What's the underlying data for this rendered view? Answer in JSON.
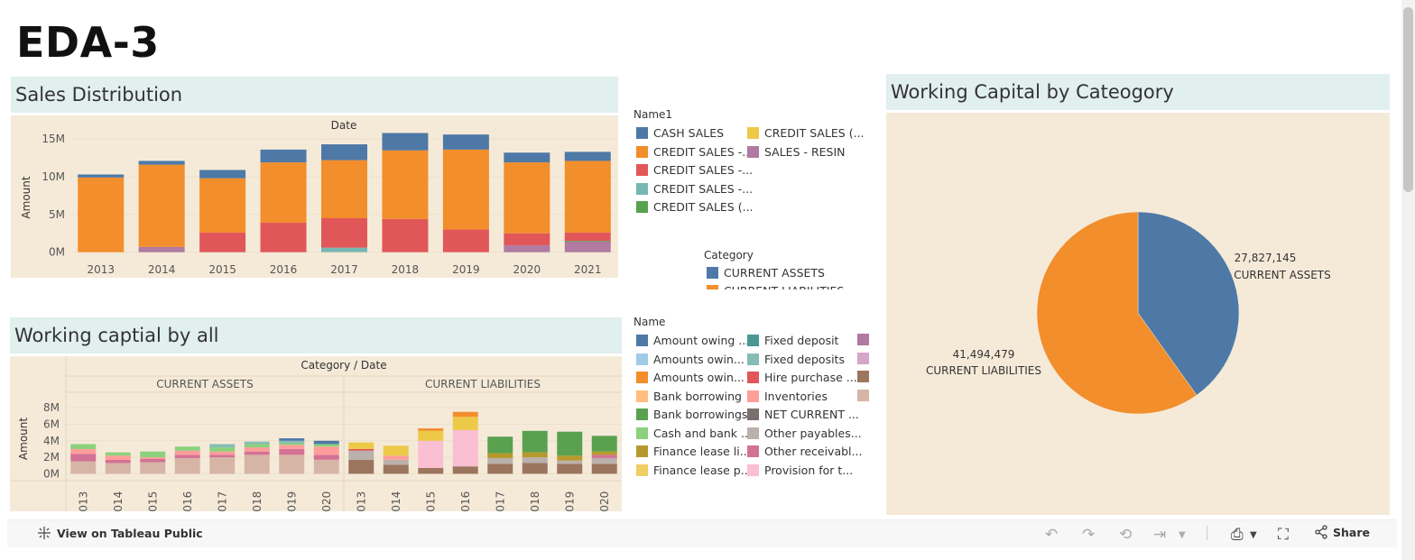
{
  "page": {
    "title": "EDA-3"
  },
  "sales": {
    "header": "Sales Distribution",
    "chart_data": {
      "type": "bar",
      "stacked": true,
      "title": "Date",
      "ylabel": "Amount",
      "ylim": [
        -1000000,
        15500000
      ],
      "yticks": [
        "15M",
        "10M",
        "5M",
        "0M"
      ],
      "ytick_values": [
        15000000,
        10000000,
        5000000,
        0
      ],
      "categories": [
        "2013",
        "2014",
        "2015",
        "2016",
        "2017",
        "2018",
        "2019",
        "2020",
        "2021"
      ],
      "series": [
        {
          "name": "SALES - RESIN",
          "color": "#b07aa1",
          "values": [
            0,
            700000,
            0,
            0,
            0,
            0,
            0,
            900000,
            1400000
          ]
        },
        {
          "name": "CREDIT SALES -...",
          "color": "#76b7b2",
          "values": [
            0,
            0,
            0,
            0,
            600000,
            0,
            0,
            0,
            0
          ]
        },
        {
          "name": "CREDIT SALES (...",
          "color": "#59a14f",
          "values": [
            0,
            0,
            0,
            0,
            0,
            0,
            0,
            0,
            100000
          ]
        },
        {
          "name": "CREDIT SALES -...",
          "color": "#e15759",
          "values": [
            0,
            0,
            2600000,
            3900000,
            3900000,
            4400000,
            3000000,
            1600000,
            1100000
          ]
        },
        {
          "name": "CREDIT SALES -...",
          "color": "#f28e2b",
          "values": [
            9900000,
            10900000,
            7200000,
            8000000,
            7700000,
            9100000,
            10600000,
            9400000,
            9500000
          ]
        },
        {
          "name": "CREDIT SALES (...",
          "color": "#edc948",
          "values": [
            0,
            0,
            0,
            0,
            0,
            0,
            0,
            0,
            0
          ]
        },
        {
          "name": "CASH SALES",
          "color": "#4e79a7",
          "values": [
            400000,
            500000,
            1100000,
            1700000,
            2100000,
            2300000,
            2000000,
            1300000,
            1200000
          ]
        }
      ]
    }
  },
  "legend_name1": {
    "title": "Name1",
    "col1": [
      {
        "label": "CASH SALES",
        "color": "#4e79a7"
      },
      {
        "label": "CREDIT SALES -...",
        "color": "#f28e2b"
      },
      {
        "label": "CREDIT SALES -...",
        "color": "#e15759"
      },
      {
        "label": "CREDIT SALES -...",
        "color": "#76b7b2"
      },
      {
        "label": "CREDIT SALES (...",
        "color": "#59a14f"
      }
    ],
    "col2": [
      {
        "label": "CREDIT SALES (...",
        "color": "#edc948"
      },
      {
        "label": "SALES - RESIN",
        "color": "#b07aa1"
      }
    ]
  },
  "legend_category": {
    "title": "Category",
    "items": [
      {
        "label": "CURRENT ASSETS",
        "color": "#4e79a7"
      },
      {
        "label": "CURRENT LIABILITIES",
        "color": "#f28e2b"
      }
    ]
  },
  "working_all": {
    "header": "Working captial by all",
    "chart_data": {
      "type": "bar",
      "stacked": true,
      "title": "Category / Date",
      "ylabel": "Amount",
      "ylim": [
        -500000,
        9000000
      ],
      "yticks": [
        "8M",
        "6M",
        "4M",
        "2M",
        "0M"
      ],
      "ytick_values": [
        8000000,
        6000000,
        4000000,
        2000000,
        0
      ],
      "panels": [
        {
          "name": "CURRENT ASSETS",
          "categories": [
            "2013",
            "2014",
            "2015",
            "2016",
            "2017",
            "2018",
            "2019",
            "2020"
          ],
          "series": [
            {
              "color": "#d7b5a6",
              "values": [
                1500000,
                1300000,
                1400000,
                1900000,
                2000000,
                2300000,
                2300000,
                1700000
              ]
            },
            {
              "color": "#d37295",
              "values": [
                900000,
                400000,
                400000,
                400000,
                300000,
                400000,
                700000,
                600000
              ]
            },
            {
              "color": "#ff9d9a",
              "values": [
                600000,
                500000,
                200000,
                500000,
                400000,
                500000,
                500000,
                1000000
              ]
            },
            {
              "color": "#8cd17d",
              "values": [
                600000,
                400000,
                700000,
                500000,
                500000,
                400000,
                200000,
                300000
              ]
            },
            {
              "color": "#86bcb6",
              "values": [
                0,
                0,
                0,
                0,
                400000,
                300000,
                300000,
                0
              ]
            },
            {
              "color": "#4e79a7",
              "values": [
                0,
                0,
                0,
                0,
                0,
                0,
                300000,
                400000
              ]
            }
          ]
        },
        {
          "name": "CURRENT LIABILITIES",
          "categories": [
            "2013",
            "2014",
            "2015",
            "2016",
            "2017",
            "2018",
            "2019",
            "2020"
          ],
          "series": [
            {
              "color": "#9c755f",
              "values": [
                1700000,
                1100000,
                700000,
                900000,
                1200000,
                1300000,
                1200000,
                1200000
              ]
            },
            {
              "color": "#bab0ac",
              "values": [
                1100000,
                600000,
                0,
                0,
                700000,
                700000,
                400000,
                700000
              ]
            },
            {
              "color": "#e15759",
              "values": [
                200000,
                0,
                0,
                0,
                0,
                0,
                0,
                0
              ]
            },
            {
              "color": "#fabfd2",
              "values": [
                0,
                0,
                3300000,
                4400000,
                0,
                0,
                0,
                0
              ]
            },
            {
              "color": "#ff9d9a",
              "values": [
                0,
                500000,
                0,
                0,
                0,
                0,
                0,
                0
              ]
            },
            {
              "color": "#d37295",
              "values": [
                0,
                0,
                0,
                0,
                0,
                0,
                0,
                400000
              ]
            },
            {
              "color": "#b6992d",
              "values": [
                0,
                0,
                0,
                0,
                600000,
                600000,
                600000,
                400000
              ]
            },
            {
              "color": "#edc948",
              "values": [
                800000,
                1200000,
                1200000,
                1600000,
                0,
                0,
                0,
                0
              ]
            },
            {
              "color": "#f28e2b",
              "values": [
                0,
                0,
                300000,
                600000,
                0,
                0,
                0,
                0
              ]
            },
            {
              "color": "#59a14f",
              "values": [
                0,
                0,
                0,
                0,
                2000000,
                2600000,
                2900000,
                1900000
              ]
            }
          ]
        }
      ]
    }
  },
  "legend_name": {
    "title": "Name",
    "col1": [
      {
        "label": "Amount owing ...",
        "color": "#4e79a7"
      },
      {
        "label": "Amounts owin...",
        "color": "#a0cbe8"
      },
      {
        "label": "Amounts owin...",
        "color": "#f28e2b"
      },
      {
        "label": "Bank borrowing",
        "color": "#ffbe7d"
      },
      {
        "label": "Bank borrowings",
        "color": "#59a14f"
      },
      {
        "label": "Cash and bank ...",
        "color": "#8cd17d"
      },
      {
        "label": "Finance lease li...",
        "color": "#b6992d"
      },
      {
        "label": "Finance lease p...",
        "color": "#f1ce63"
      }
    ],
    "col2": [
      {
        "label": "Fixed deposit",
        "color": "#499894"
      },
      {
        "label": "Fixed deposits",
        "color": "#86bcb6"
      },
      {
        "label": "Hire purchase ...",
        "color": "#e15759"
      },
      {
        "label": "Inventories",
        "color": "#ff9d9a"
      },
      {
        "label": "NET CURRENT ...",
        "color": "#79706e"
      },
      {
        "label": "Other payables...",
        "color": "#bab0ac"
      },
      {
        "label": "Other receivabl...",
        "color": "#d37295"
      },
      {
        "label": "Provision for t...",
        "color": "#fabfd2"
      }
    ],
    "col3_colors": [
      "#b07aa1",
      "#d4a6c8",
      "#9d7660",
      "#d7b5a6"
    ]
  },
  "working_category": {
    "header": "Working Capital by Cateogory",
    "chart_data": {
      "type": "pie",
      "slices": [
        {
          "label": "CURRENT ASSETS",
          "value": 27827145,
          "value_text": "27,827,145",
          "color": "#4e79a7"
        },
        {
          "label": "CURRENT LIABILITIES",
          "value": 41494479,
          "value_text": "41,494,479",
          "color": "#f28e2b"
        }
      ]
    }
  },
  "toolbar": {
    "view_link": "View on Tableau Public",
    "share": "Share"
  }
}
